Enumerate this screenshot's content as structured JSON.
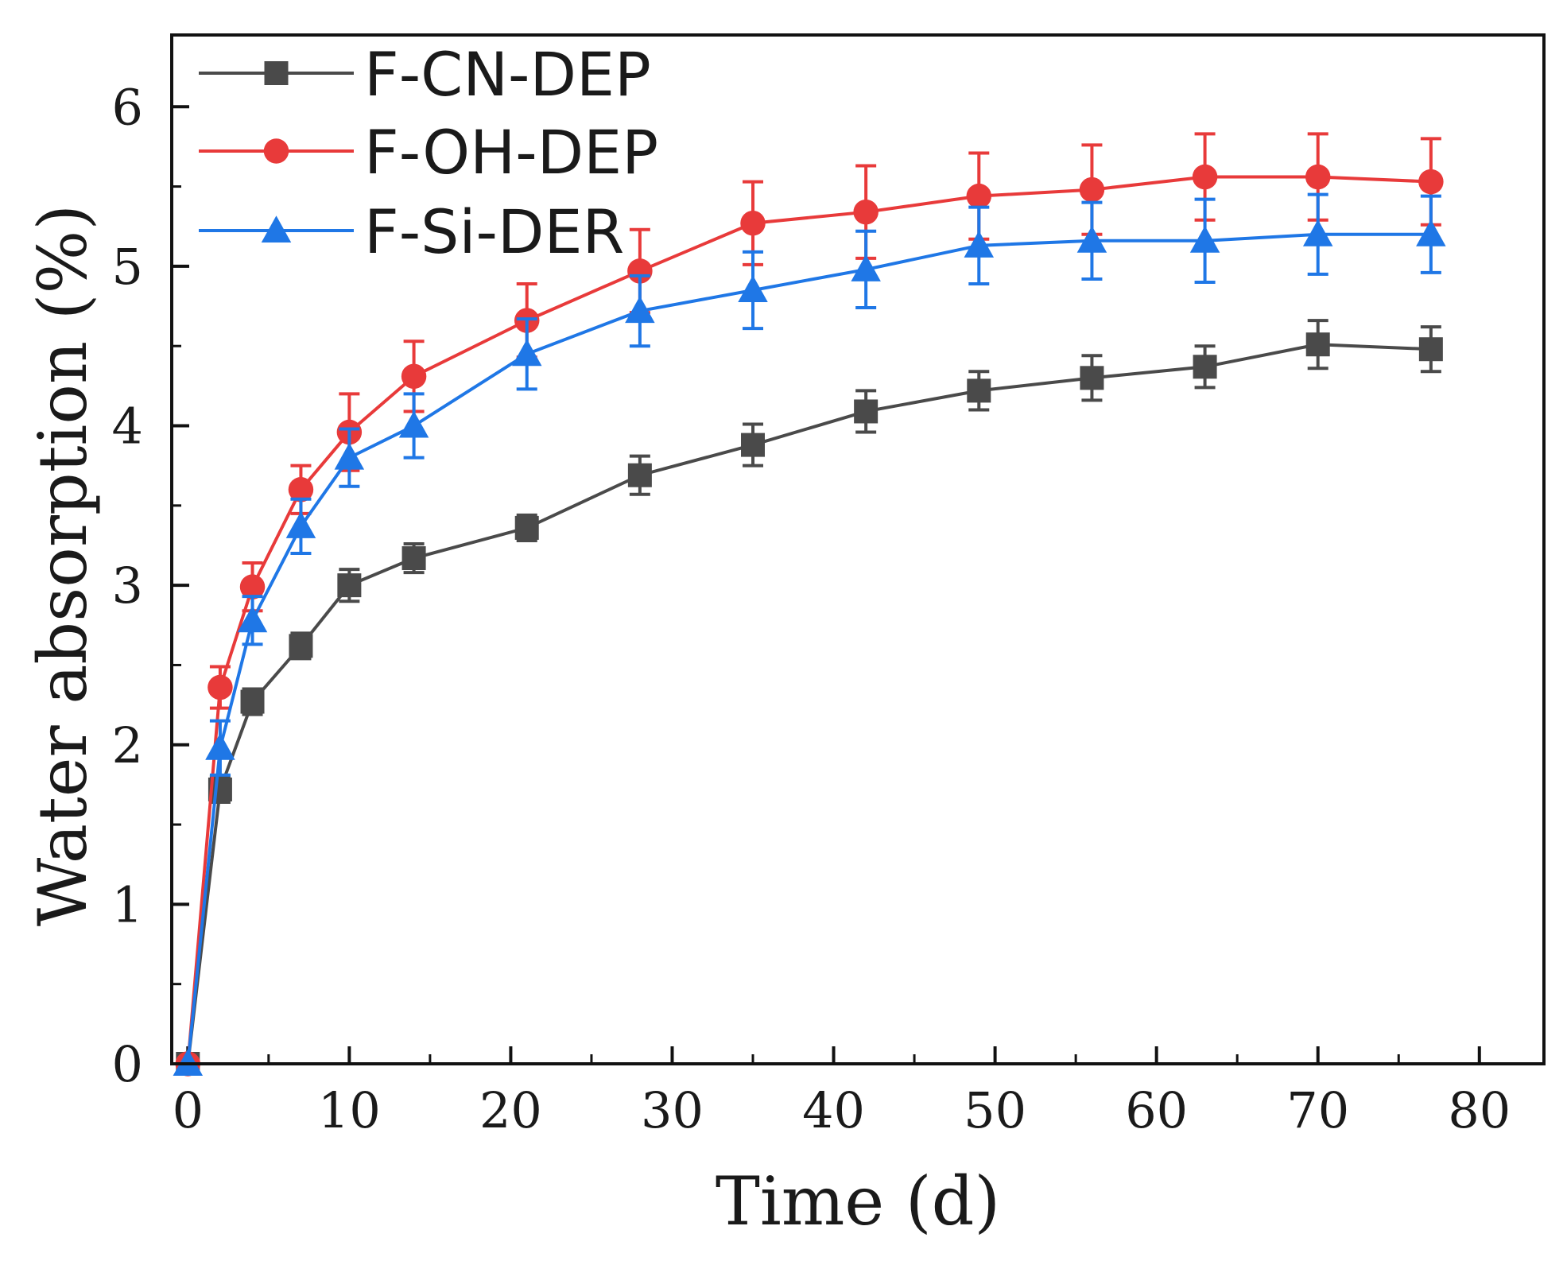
{
  "chart_data": {
    "type": "line",
    "xlabel": "Time (d)",
    "ylabel": "Water absorption (%)",
    "xlim": [
      -1,
      84
    ],
    "ylim": [
      0,
      6.45
    ],
    "x_ticks": [
      0,
      10,
      20,
      30,
      40,
      50,
      60,
      70,
      80
    ],
    "y_ticks": [
      0,
      1,
      2,
      3,
      4,
      5,
      6
    ],
    "legend_position": "top-left",
    "grid": false,
    "x": [
      0,
      2,
      4,
      7,
      10,
      14,
      21,
      28,
      35,
      42,
      49,
      56,
      63,
      70,
      77
    ],
    "series": [
      {
        "name": "F-CN-DEP",
        "color": "#4a4a4a",
        "marker": "square",
        "values": [
          0,
          1.72,
          2.27,
          2.62,
          3.0,
          3.17,
          3.36,
          3.69,
          3.88,
          4.09,
          4.22,
          4.3,
          4.37,
          4.51,
          4.48
        ],
        "errors": [
          0,
          0.08,
          0.08,
          0.08,
          0.1,
          0.09,
          0.08,
          0.12,
          0.13,
          0.13,
          0.12,
          0.14,
          0.13,
          0.15,
          0.14
        ]
      },
      {
        "name": "F-OH-DEP",
        "color": "#e83a3a",
        "marker": "circle",
        "values": [
          0,
          2.36,
          2.99,
          3.6,
          3.96,
          4.31,
          4.66,
          4.97,
          5.27,
          5.34,
          5.44,
          5.48,
          5.56,
          5.56,
          5.53
        ],
        "errors": [
          0,
          0.13,
          0.15,
          0.15,
          0.24,
          0.22,
          0.23,
          0.26,
          0.26,
          0.29,
          0.27,
          0.28,
          0.27,
          0.27,
          0.27
        ]
      },
      {
        "name": "F-Si-DER",
        "color": "#1f77e6",
        "marker": "triangle",
        "values": [
          0,
          1.98,
          2.78,
          3.37,
          3.8,
          4.0,
          4.45,
          4.72,
          4.85,
          4.98,
          5.13,
          5.16,
          5.16,
          5.2,
          5.2
        ],
        "errors": [
          0,
          0.17,
          0.15,
          0.17,
          0.18,
          0.2,
          0.22,
          0.22,
          0.24,
          0.24,
          0.24,
          0.24,
          0.26,
          0.25,
          0.24
        ]
      }
    ]
  }
}
